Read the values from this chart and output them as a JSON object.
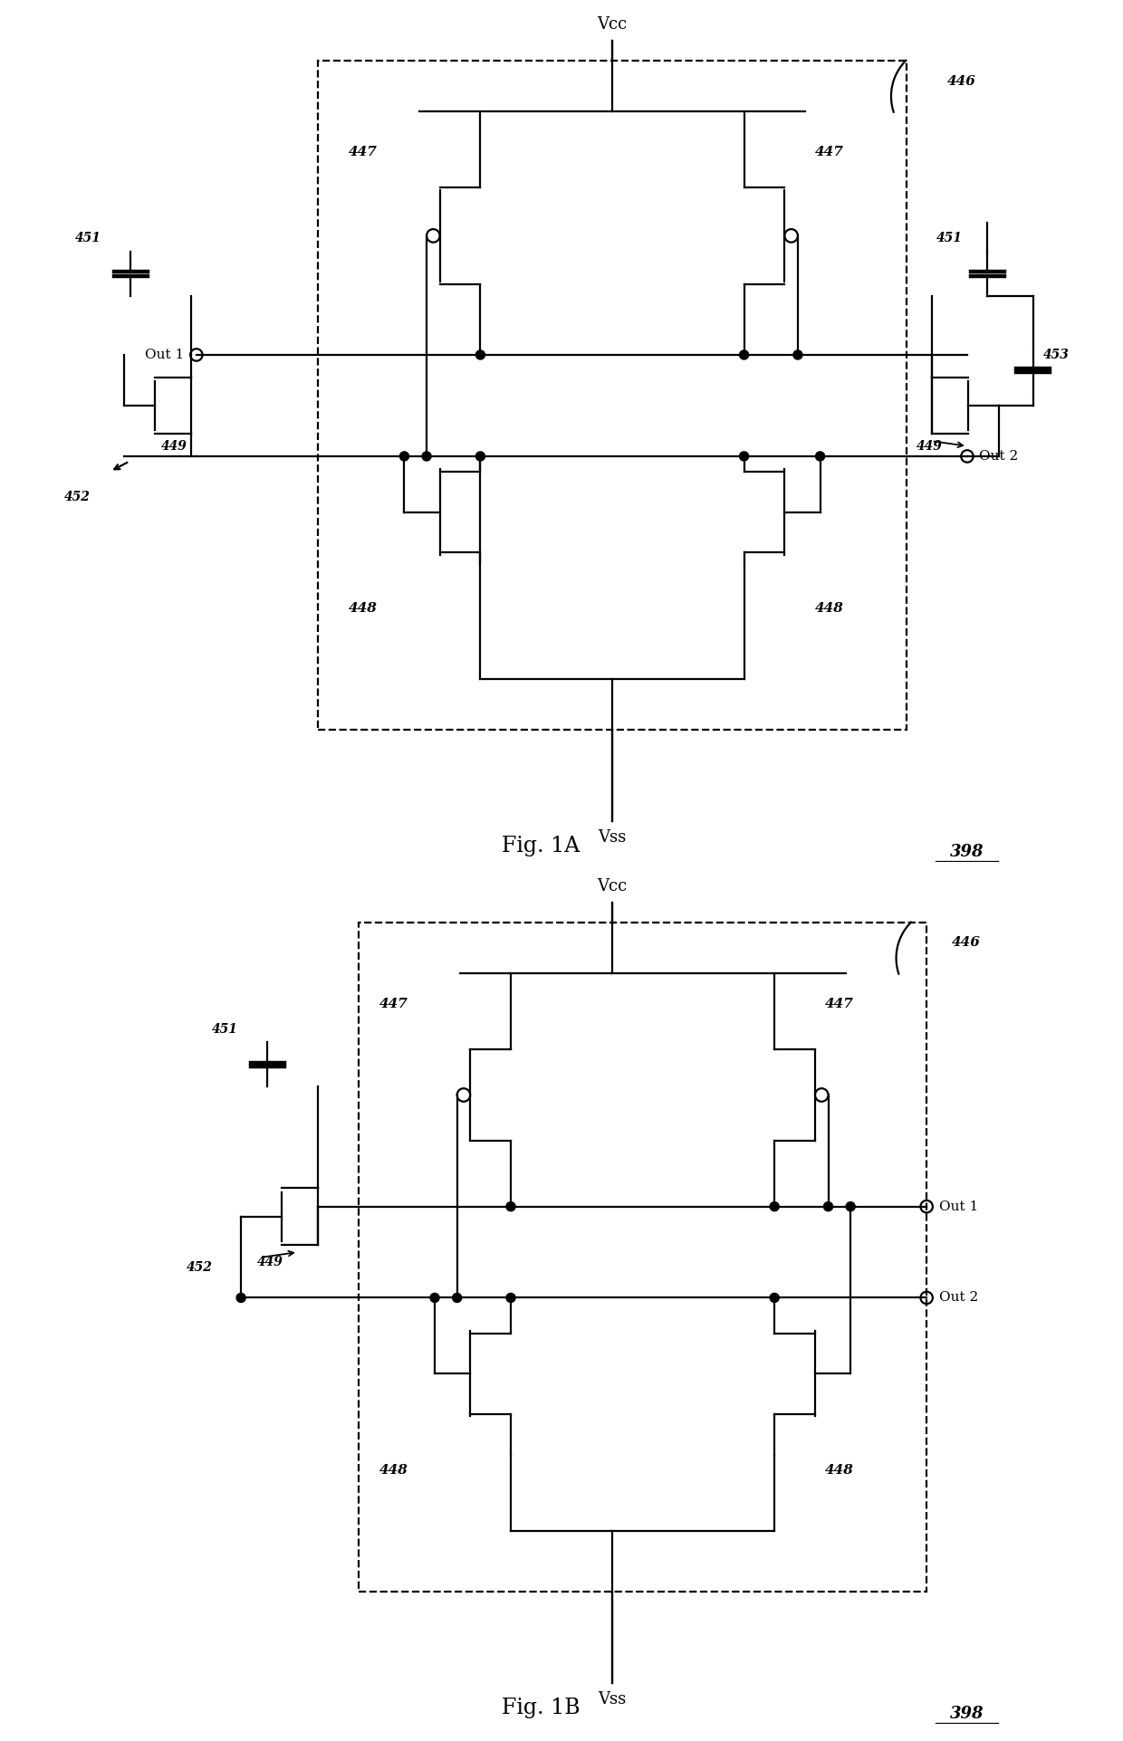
{
  "fig_width": 12.4,
  "fig_height": 19.23,
  "dpi": 100,
  "bg": "#ffffff",
  "lc": "#000000",
  "lw": 1.6,
  "fig1A_label": "Fig. 1A",
  "fig1B_label": "Fig. 1B",
  "ref": "398",
  "vcc": "Vcc",
  "vss": "Vss",
  "out1": "Out 1",
  "out2": "Out 2",
  "n446": "446",
  "n447": "447",
  "n448": "448",
  "n449": "449",
  "n451": "451",
  "n452": "452",
  "n453": "453"
}
